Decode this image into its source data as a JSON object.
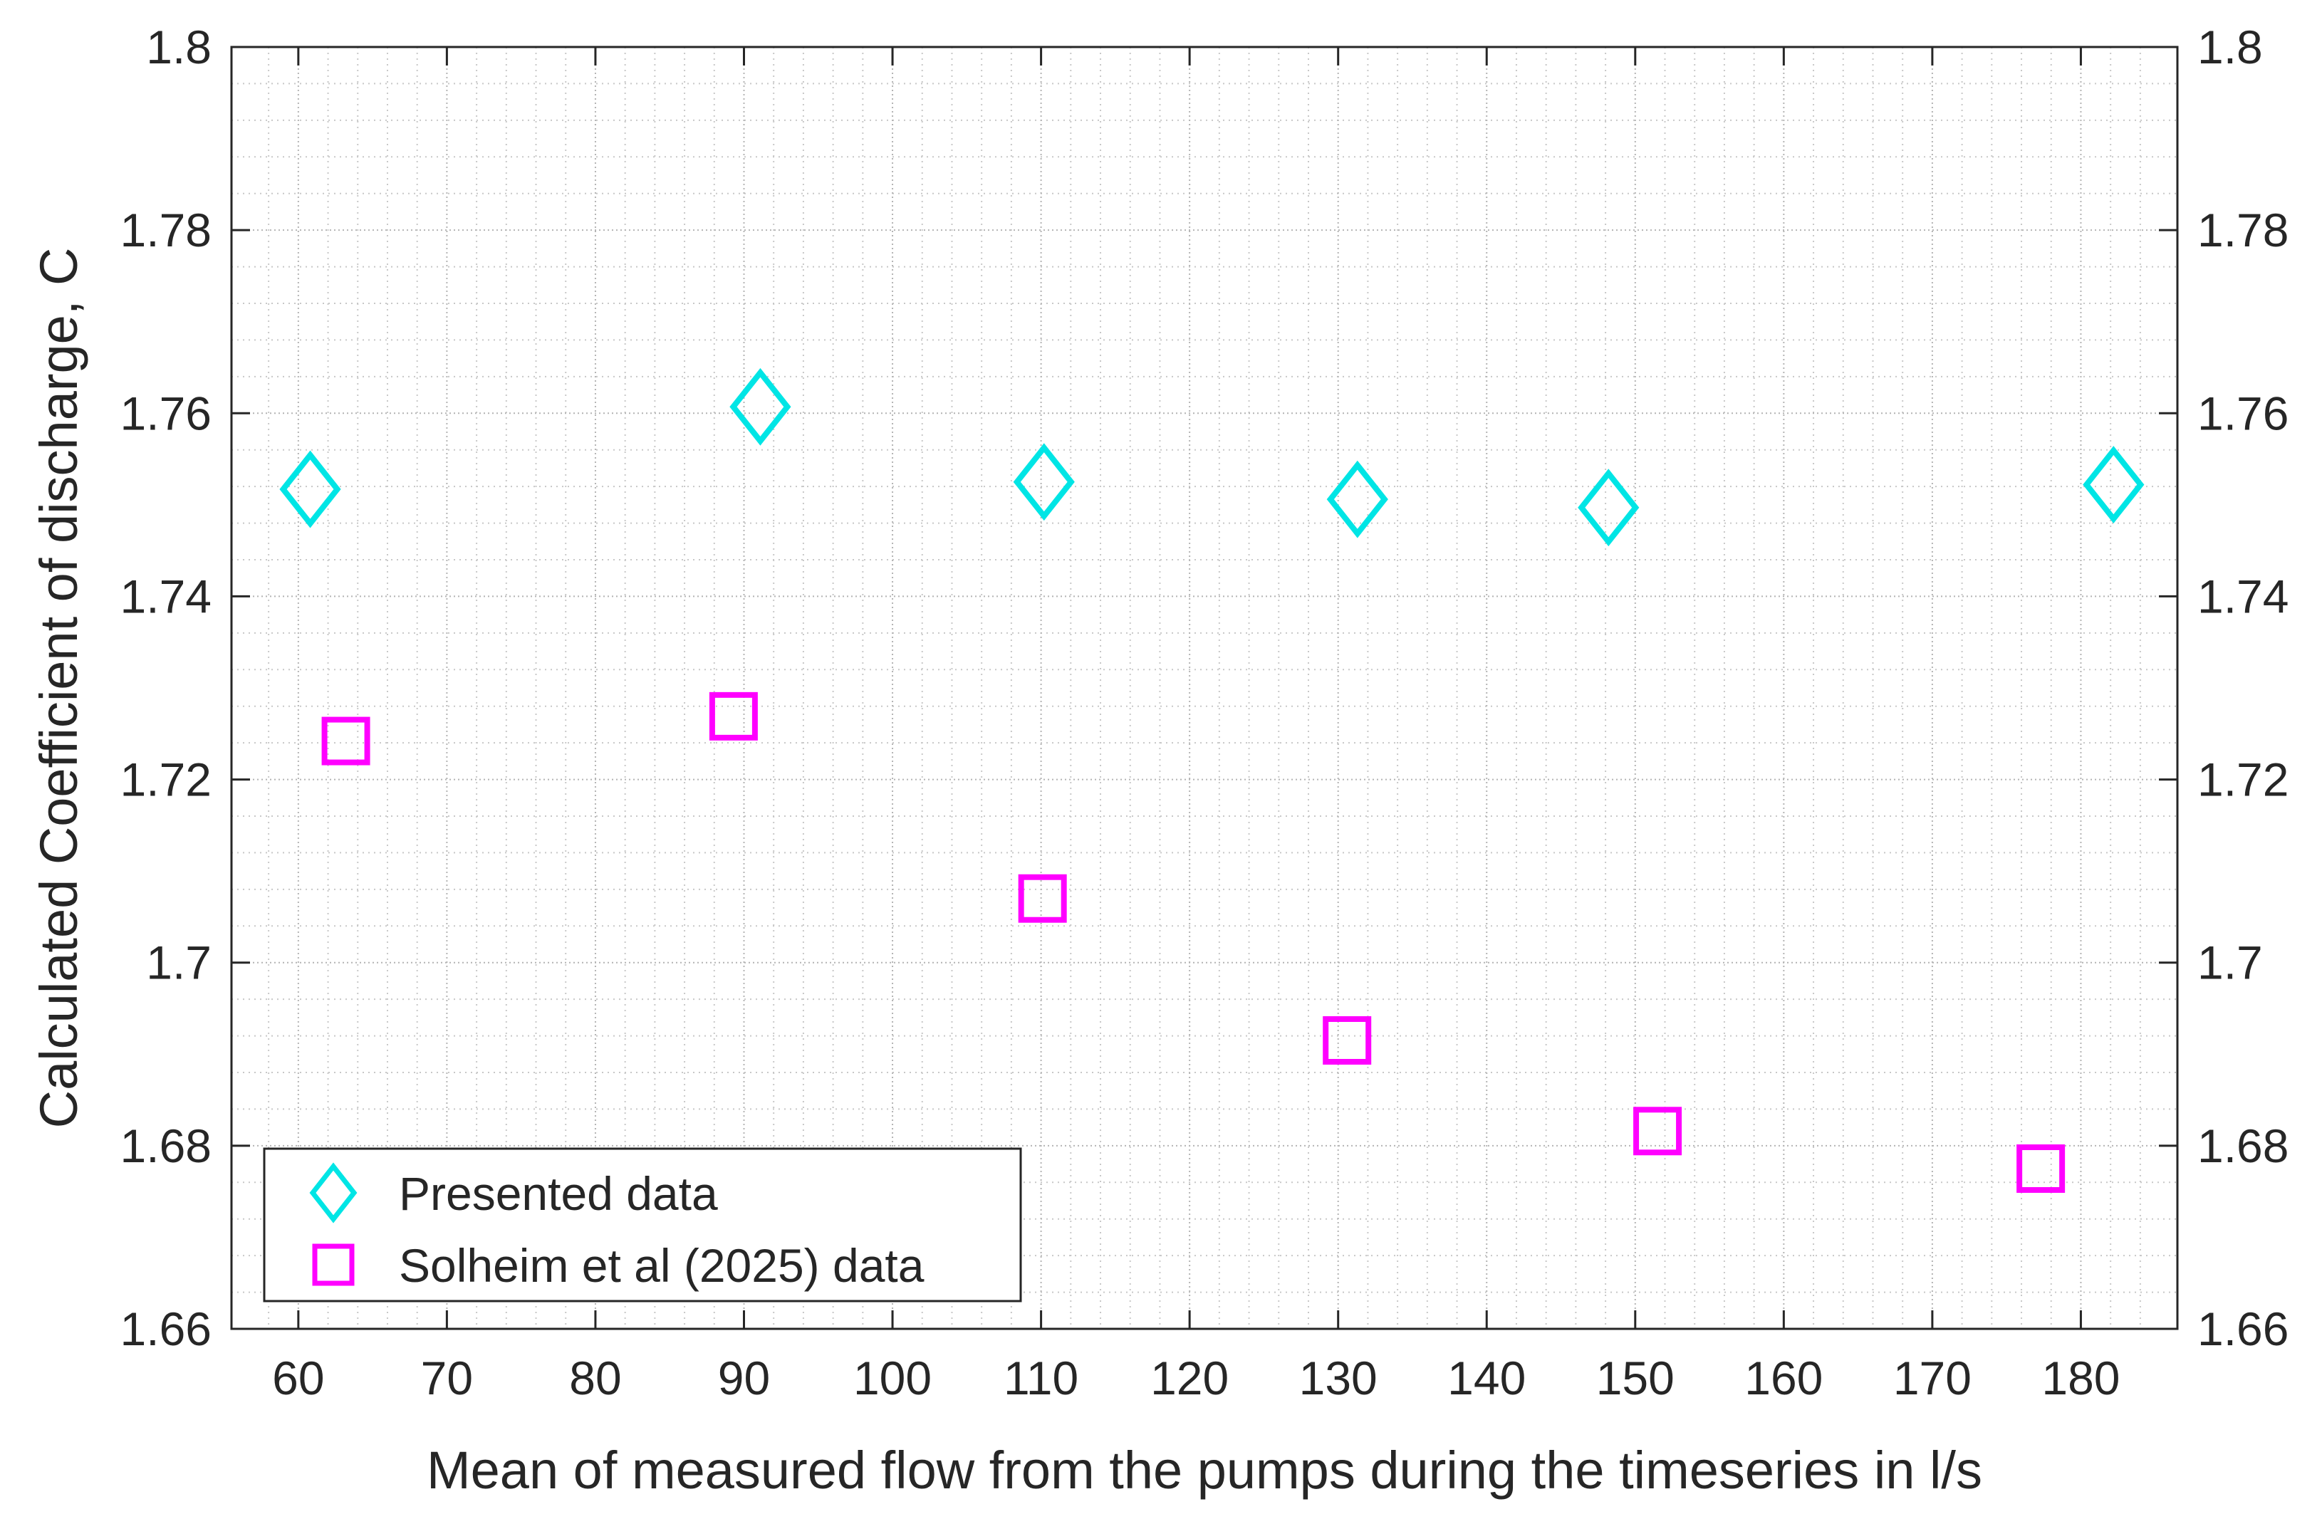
{
  "chart_data": {
    "type": "scatter",
    "title": "",
    "xlabel": "Mean of measured flow from the pumps during the timeseries in l/s",
    "ylabel": "Calculated Coefficient of discharge, C",
    "xlim": [
      55.5,
      186.5
    ],
    "ylim": [
      1.66,
      1.8
    ],
    "xticks": [
      60,
      70,
      80,
      90,
      100,
      110,
      120,
      130,
      140,
      150,
      160,
      170,
      180
    ],
    "xtick_labels": [
      "60",
      "70",
      "80",
      "90",
      "100",
      "110",
      "120",
      "130",
      "140",
      "150",
      "160",
      "170",
      "180"
    ],
    "yticks": [
      1.66,
      1.68,
      1.7,
      1.72,
      1.74,
      1.76,
      1.78,
      1.8
    ],
    "ytick_labels": [
      "1.66",
      "1.68",
      "1.7",
      "1.72",
      "1.74",
      "1.76",
      "1.78",
      "1.8"
    ],
    "right_ytick_labels": [
      "1.66",
      "1.68",
      "1.7",
      "1.72",
      "1.74",
      "1.76",
      "1.78",
      "1.8"
    ],
    "grid": true,
    "minor_grid": true,
    "legend_position": "bottom-left",
    "series": [
      {
        "name": "Presented data",
        "marker": "diamond",
        "color": "#00e5e5",
        "x": [
          60.8,
          91.1,
          110.2,
          131.3,
          148.2,
          182.2
        ],
        "y": [
          1.7517,
          1.7607,
          1.7525,
          1.7506,
          1.7497,
          1.7522
        ]
      },
      {
        "name": "Solheim et al (2025) data",
        "marker": "square",
        "color": "#ff00ff",
        "x": [
          63.2,
          89.3,
          110.1,
          130.6,
          151.5,
          177.3
        ],
        "y": [
          1.7242,
          1.7269,
          1.707,
          1.6915,
          1.6816,
          1.6775
        ]
      }
    ]
  }
}
